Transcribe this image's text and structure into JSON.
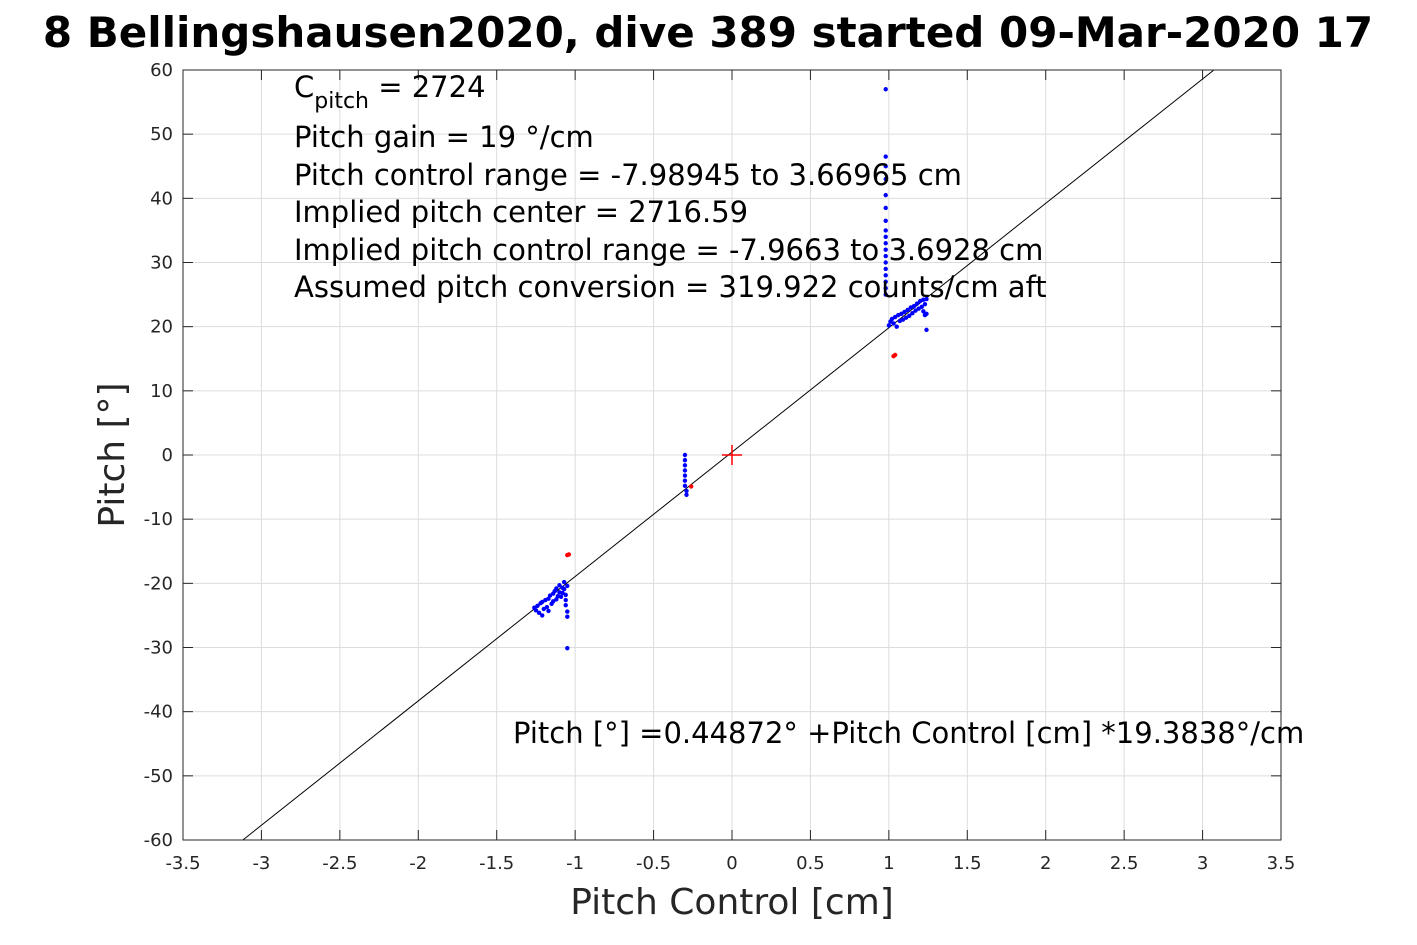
{
  "chart_data": {
    "type": "scatter",
    "title": "8 Bellingshausen2020, dive 389 started 09-Mar-2020 17",
    "xlabel": "Pitch Control [cm]",
    "ylabel": "Pitch [°]",
    "xlim": [
      -3.5,
      3.5
    ],
    "ylim": [
      -60,
      60
    ],
    "grid": true,
    "x_ticks": [
      -3.5,
      -3,
      -2.5,
      -2,
      -1.5,
      -1,
      -0.5,
      0,
      0.5,
      1,
      1.5,
      2,
      2.5,
      3,
      3.5
    ],
    "x_tick_labels": [
      "-3.5",
      "-3",
      "-2.5",
      "-2",
      "-1.5",
      "-1",
      "-0.5",
      "0",
      "0.5",
      "1",
      "1.5",
      "2",
      "2.5",
      "3",
      "3.5"
    ],
    "y_ticks": [
      60,
      50,
      40,
      30,
      20,
      10,
      0,
      -10,
      -20,
      -30,
      -40,
      -50,
      -60
    ],
    "y_tick_labels": [
      "60",
      "50",
      "40",
      "30",
      "20",
      "10",
      "0",
      "-10",
      "-20",
      "-30",
      "-40",
      "-50",
      "-60"
    ],
    "fit_line": {
      "intercept": 0.44872,
      "slope": 19.3838,
      "color": "#000000",
      "equation_label": "Pitch [°] =0.44872° +Pitch Control [cm] *19.3838°/cm"
    },
    "annotations": {
      "c_pitch_symbol": "C",
      "c_pitch_subscript": "pitch",
      "c_pitch_value": " = 2724",
      "lines": [
        "Pitch gain = 19 °/cm",
        "Pitch control range = -7.98945 to 3.66965 cm",
        "Implied pitch center = 2716.59",
        "Implied pitch control range = -7.9663 to 3.6928 cm",
        "Assumed pitch conversion = 319.922 counts/cm aft"
      ]
    },
    "center_marker": {
      "x": 0,
      "y": 0,
      "color": "#ff0000",
      "shape": "plus"
    },
    "series": [
      {
        "color": "#0000ff",
        "points": [
          [
            -1.26,
            -23.8
          ],
          [
            -1.25,
            -24.2
          ],
          [
            -1.24,
            -23.5
          ],
          [
            -1.23,
            -24.6
          ],
          [
            -1.22,
            -23.1
          ],
          [
            -1.21,
            -25.0
          ],
          [
            -1.21,
            -22.9
          ],
          [
            -1.2,
            -24.0
          ],
          [
            -1.19,
            -22.6
          ],
          [
            -1.18,
            -23.7
          ],
          [
            -1.17,
            -22.4
          ],
          [
            -1.17,
            -24.3
          ],
          [
            -1.16,
            -21.9
          ],
          [
            -1.15,
            -23.2
          ],
          [
            -1.14,
            -21.6
          ],
          [
            -1.14,
            -22.8
          ],
          [
            -1.13,
            -21.2
          ],
          [
            -1.12,
            -22.5
          ],
          [
            -1.12,
            -20.8
          ],
          [
            -1.11,
            -22.0
          ],
          [
            -1.1,
            -21.4
          ],
          [
            -1.1,
            -20.3
          ],
          [
            -1.09,
            -22.1
          ],
          [
            -1.08,
            -20.7
          ],
          [
            -1.08,
            -21.5
          ],
          [
            -1.07,
            -19.8
          ],
          [
            -1.07,
            -20.9
          ],
          [
            -1.06,
            -21.8
          ],
          [
            -1.06,
            -22.6
          ],
          [
            -1.06,
            -23.4
          ],
          [
            -1.05,
            -24.4
          ],
          [
            -1.05,
            -25.2
          ],
          [
            -1.05,
            -20.4
          ],
          [
            -1.05,
            -30.1
          ],
          [
            -0.3,
            0.0
          ],
          [
            -0.3,
            -0.8
          ],
          [
            -0.3,
            -1.6
          ],
          [
            -0.3,
            -2.4
          ],
          [
            -0.3,
            -3.2
          ],
          [
            -0.3,
            -4.0
          ],
          [
            -0.3,
            -4.8
          ],
          [
            -0.29,
            -5.6
          ],
          [
            -0.29,
            -6.2
          ],
          [
            0.98,
            57.0
          ],
          [
            0.98,
            46.5
          ],
          [
            0.98,
            45.0
          ],
          [
            0.98,
            43.0
          ],
          [
            0.98,
            40.5
          ],
          [
            0.98,
            38.5
          ],
          [
            0.98,
            36.5
          ],
          [
            0.98,
            35.0
          ],
          [
            0.98,
            34.0
          ],
          [
            0.98,
            33.0
          ],
          [
            0.98,
            32.0
          ],
          [
            0.98,
            31.0
          ],
          [
            0.98,
            30.0
          ],
          [
            0.98,
            29.0
          ],
          [
            0.98,
            28.0
          ],
          [
            0.98,
            27.0
          ],
          [
            0.98,
            26.0
          ],
          [
            0.98,
            25.0
          ],
          [
            1.0,
            20.2
          ],
          [
            1.01,
            20.8
          ],
          [
            1.02,
            21.2
          ],
          [
            1.03,
            20.5
          ],
          [
            1.04,
            21.5
          ],
          [
            1.05,
            20.0
          ],
          [
            1.06,
            21.8
          ],
          [
            1.07,
            20.9
          ],
          [
            1.08,
            22.0
          ],
          [
            1.09,
            21.1
          ],
          [
            1.1,
            22.3
          ],
          [
            1.11,
            21.4
          ],
          [
            1.12,
            22.6
          ],
          [
            1.13,
            21.7
          ],
          [
            1.14,
            23.0
          ],
          [
            1.15,
            22.1
          ],
          [
            1.16,
            23.2
          ],
          [
            1.17,
            22.5
          ],
          [
            1.18,
            23.6
          ],
          [
            1.19,
            22.8
          ],
          [
            1.2,
            24.0
          ],
          [
            1.21,
            23.1
          ],
          [
            1.22,
            24.2
          ],
          [
            1.22,
            22.4
          ],
          [
            1.23,
            23.5
          ],
          [
            1.23,
            21.8
          ],
          [
            1.24,
            24.3
          ],
          [
            1.24,
            22.0
          ],
          [
            1.24,
            19.5
          ]
        ]
      },
      {
        "color": "#ff0000",
        "points": [
          [
            -1.04,
            -15.5
          ],
          [
            -1.05,
            -15.6
          ],
          [
            -0.26,
            -4.9
          ],
          [
            1.03,
            15.4
          ],
          [
            1.04,
            15.6
          ]
        ]
      }
    ]
  }
}
